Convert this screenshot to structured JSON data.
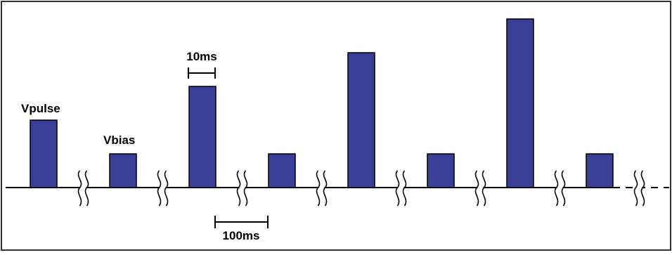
{
  "colors": {
    "pulse_fill": "#3b3f96",
    "stroke": "#000000",
    "background": "#ffffff"
  },
  "labels": {
    "vpulse": "Vpulse",
    "vbias": "Vbias",
    "pulse_width": "10ms",
    "period": "100ms"
  },
  "pulses": [
    {
      "kind": "pulse",
      "level": 2
    },
    {
      "kind": "bias",
      "level": 1
    },
    {
      "kind": "pulse",
      "level": 3
    },
    {
      "kind": "bias",
      "level": 1
    },
    {
      "kind": "pulse",
      "level": 4
    },
    {
      "kind": "bias",
      "level": 1
    },
    {
      "kind": "pulse",
      "level": 5
    },
    {
      "kind": "bias",
      "level": 1
    }
  ]
}
